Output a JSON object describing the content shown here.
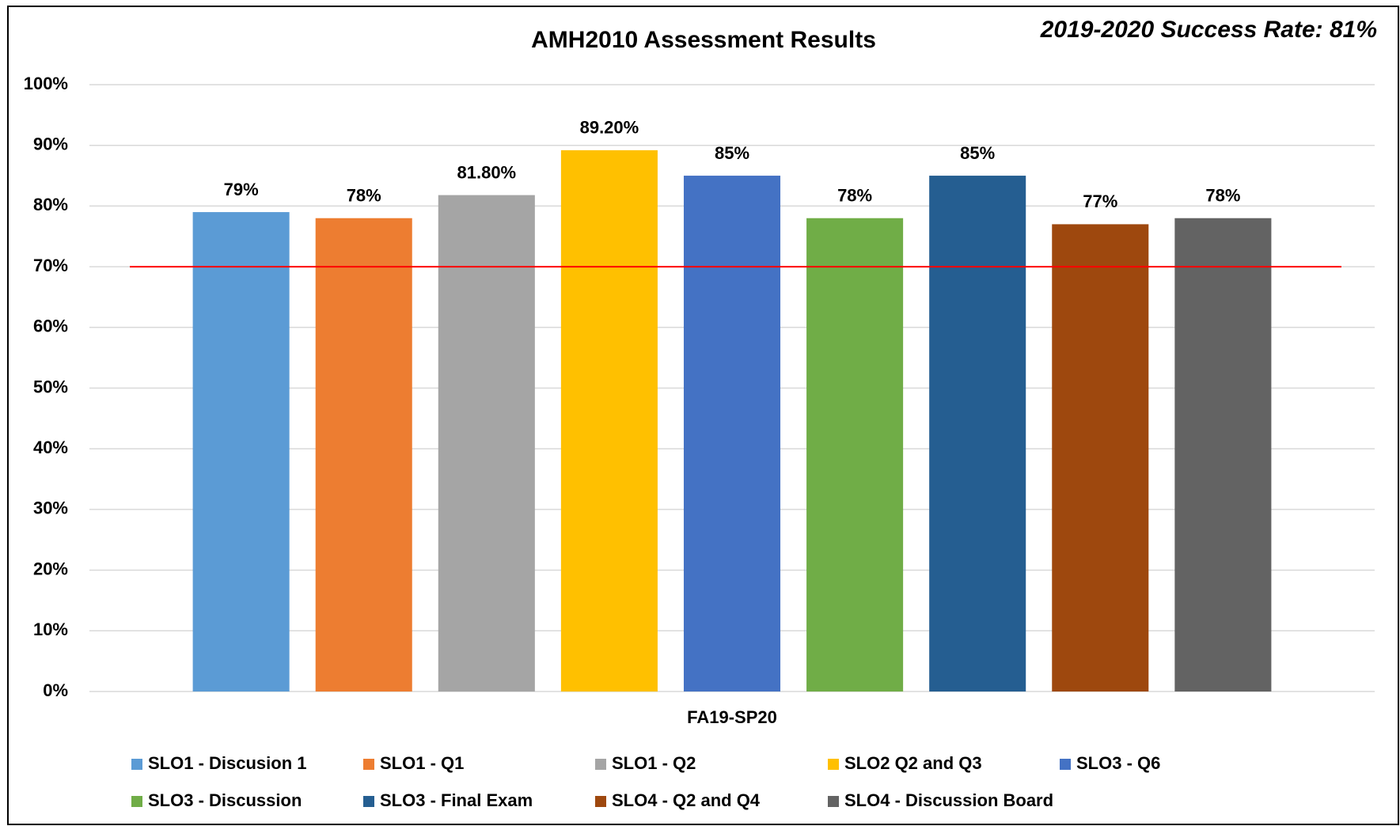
{
  "chart_data": {
    "type": "bar",
    "title": "AMH2010 Assessment Results",
    "annotation": "2019-2020 Success Rate: 81%",
    "categories": [
      "FA19-SP20"
    ],
    "series": [
      {
        "name": "SLO1 - Discusion 1",
        "color": "#5b9bd5",
        "values": [
          79
        ],
        "value_labels": [
          "79%"
        ]
      },
      {
        "name": "SLO1 - Q1",
        "color": "#ed7d31",
        "values": [
          78
        ],
        "value_labels": [
          "78%"
        ]
      },
      {
        "name": "SLO1 - Q2",
        "color": "#a5a5a5",
        "values": [
          81.8
        ],
        "value_labels": [
          "81.80%"
        ]
      },
      {
        "name": "SLO2 Q2 and Q3",
        "color": "#ffc000",
        "values": [
          89.2
        ],
        "value_labels": [
          "89.20%"
        ]
      },
      {
        "name": "SLO3 - Q6",
        "color": "#4472c4",
        "values": [
          85
        ],
        "value_labels": [
          "85%"
        ]
      },
      {
        "name": "SLO3 - Discussion",
        "color": "#70ad47",
        "values": [
          78
        ],
        "value_labels": [
          "78%"
        ]
      },
      {
        "name": "SLO3 - Final Exam",
        "color": "#255e91",
        "values": [
          85
        ],
        "value_labels": [
          "85%"
        ]
      },
      {
        "name": "SLO4 - Q2 and Q4",
        "color": "#9e480e",
        "values": [
          77
        ],
        "value_labels": [
          "77%"
        ]
      },
      {
        "name": "SLO4 - Discussion Board",
        "color": "#636363",
        "values": [
          78
        ],
        "value_labels": [
          "78%"
        ]
      }
    ],
    "reference_line": {
      "value": 70,
      "color": "#ff0000"
    },
    "ylim": [
      0,
      100
    ],
    "yticks": [
      {
        "value": 0,
        "label": "0%"
      },
      {
        "value": 10,
        "label": "10%"
      },
      {
        "value": 20,
        "label": "20%"
      },
      {
        "value": 30,
        "label": "30%"
      },
      {
        "value": 40,
        "label": "40%"
      },
      {
        "value": 50,
        "label": "50%"
      },
      {
        "value": 60,
        "label": "60%"
      },
      {
        "value": 70,
        "label": "70%"
      },
      {
        "value": 80,
        "label": "80%"
      },
      {
        "value": 90,
        "label": "90%"
      },
      {
        "value": 100,
        "label": "100%"
      }
    ],
    "grid": true,
    "legend": "bottom"
  }
}
